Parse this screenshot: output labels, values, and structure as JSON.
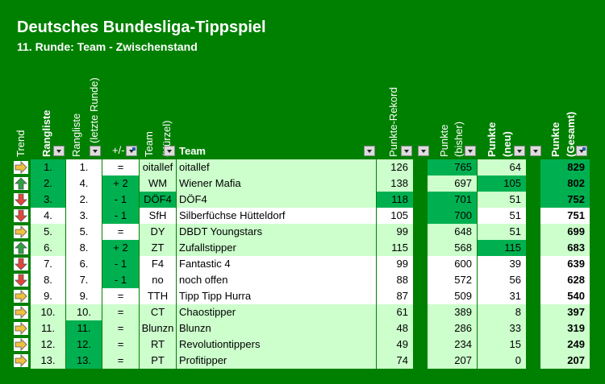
{
  "title": "Deutsches Bundesliga-Tippspiel",
  "subtitle": "11. Runde: Team - Zwischenstand",
  "headers": {
    "trend": "Trend",
    "rangliste": "Rangliste",
    "rangliste_letzte_1": "Rangliste",
    "rangliste_letzte_2": "(letzte Runde)",
    "plusminus": "+/-",
    "team_kurzel_1": "Team",
    "team_kurzel_2": "(Kürzel)",
    "team": "Team",
    "punkte_rekord": "Punkte-Rekord",
    "punkte_bisher_1": "Punkte",
    "punkte_bisher_2": "(bisher)",
    "punkte_neu_1": "Punkte",
    "punkte_neu_2": "(neu)",
    "punkte_gesamt_1": "Punkte",
    "punkte_gesamt_2": "(Gesamt)"
  },
  "colors": {
    "background": "#008000",
    "light_green": "#ccffcc",
    "highlight_green": "#00b050",
    "arrow_up": "#2ea043",
    "arrow_down": "#e2463a",
    "arrow_right": "#f0c040"
  },
  "rows": [
    {
      "trend": "right-arrow-icon",
      "rank": "1.",
      "last": "1.",
      "pm": "=",
      "short": "oitallef",
      "team": "oitallef",
      "rekord": "126",
      "bisher": "765",
      "neu": "64",
      "gesamt": "829"
    },
    {
      "trend": "up-arrow-icon",
      "rank": "2.",
      "last": "4.",
      "pm": "+ 2",
      "short": "WM",
      "team": "Wiener Mafia",
      "rekord": "138",
      "bisher": "697",
      "neu": "105",
      "gesamt": "802"
    },
    {
      "trend": "down-arrow-icon",
      "rank": "3.",
      "last": "2.",
      "pm": "- 1",
      "short": "DÖF4",
      "team": "DÖF4",
      "rekord": "118",
      "bisher": "701",
      "neu": "51",
      "gesamt": "752"
    },
    {
      "trend": "down-arrow-icon",
      "rank": "4.",
      "last": "3.",
      "pm": "- 1",
      "short": "SfH",
      "team": "Silberfüchse Hütteldorf",
      "rekord": "105",
      "bisher": "700",
      "neu": "51",
      "gesamt": "751"
    },
    {
      "trend": "right-arrow-icon",
      "rank": "5.",
      "last": "5.",
      "pm": "=",
      "short": "DY",
      "team": "DBDT Youngstars",
      "rekord": "99",
      "bisher": "648",
      "neu": "51",
      "gesamt": "699"
    },
    {
      "trend": "up-arrow-icon",
      "rank": "6.",
      "last": "8.",
      "pm": "+ 2",
      "short": "ZT",
      "team": "Zufallstipper",
      "rekord": "115",
      "bisher": "568",
      "neu": "115",
      "gesamt": "683"
    },
    {
      "trend": "down-arrow-icon",
      "rank": "7.",
      "last": "6.",
      "pm": "- 1",
      "short": "F4",
      "team": "Fantastic 4",
      "rekord": "99",
      "bisher": "600",
      "neu": "39",
      "gesamt": "639"
    },
    {
      "trend": "down-arrow-icon",
      "rank": "8.",
      "last": "7.",
      "pm": "- 1",
      "short": "no",
      "team": "noch offen",
      "rekord": "88",
      "bisher": "572",
      "neu": "56",
      "gesamt": "628"
    },
    {
      "trend": "right-arrow-icon",
      "rank": "9.",
      "last": "9.",
      "pm": "=",
      "short": "TTH",
      "team": "Tipp Tipp Hurra",
      "rekord": "87",
      "bisher": "509",
      "neu": "31",
      "gesamt": "540"
    },
    {
      "trend": "right-arrow-icon",
      "rank": "10.",
      "last": "10.",
      "pm": "=",
      "short": "CT",
      "team": "Chaostipper",
      "rekord": "61",
      "bisher": "389",
      "neu": "8",
      "gesamt": "397"
    },
    {
      "trend": "right-arrow-icon",
      "rank": "11.",
      "last": "11.",
      "pm": "=",
      "short": "Blunzn",
      "team": "Blunzn",
      "rekord": "48",
      "bisher": "286",
      "neu": "33",
      "gesamt": "319"
    },
    {
      "trend": "right-arrow-icon",
      "rank": "12.",
      "last": "12.",
      "pm": "=",
      "short": "RT",
      "team": "Revolutiontippers",
      "rekord": "49",
      "bisher": "234",
      "neu": "15",
      "gesamt": "249"
    },
    {
      "trend": "right-arrow-icon",
      "rank": "13.",
      "last": "13.",
      "pm": "=",
      "short": "PT",
      "team": "Profitipper",
      "rekord": "74",
      "bisher": "207",
      "neu": "0",
      "gesamt": "207"
    }
  ]
}
